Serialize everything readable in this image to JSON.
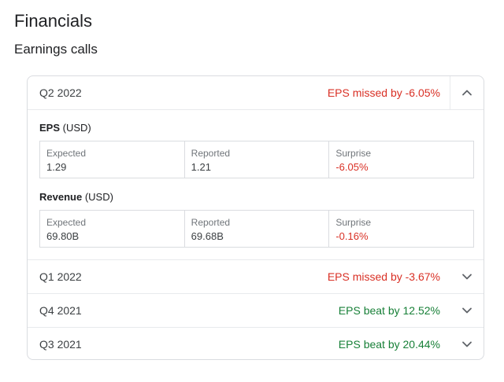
{
  "page": {
    "title": "Financials",
    "section_title": "Earnings calls"
  },
  "colors": {
    "missed": "#d93025",
    "beat": "#188038",
    "border": "#dadce0"
  },
  "earnings": [
    {
      "quarter": "Q2 2022",
      "status": "EPS missed by -6.05%",
      "result": "missed",
      "expanded": true,
      "icon": "chevron-up-icon",
      "eps": {
        "label": "EPS",
        "unit": "(USD)",
        "expected_label": "Expected",
        "expected": "1.29",
        "reported_label": "Reported",
        "reported": "1.21",
        "surprise_label": "Surprise",
        "surprise": "-6.05%"
      },
      "revenue": {
        "label": "Revenue",
        "unit": "(USD)",
        "expected_label": "Expected",
        "expected": "69.80B",
        "reported_label": "Reported",
        "reported": "69.68B",
        "surprise_label": "Surprise",
        "surprise": "-0.16%"
      }
    },
    {
      "quarter": "Q1 2022",
      "status": "EPS missed by -3.67%",
      "result": "missed",
      "expanded": false,
      "icon": "chevron-down-icon"
    },
    {
      "quarter": "Q4 2021",
      "status": "EPS beat by 12.52%",
      "result": "beat",
      "expanded": false,
      "icon": "chevron-down-icon"
    },
    {
      "quarter": "Q3 2021",
      "status": "EPS beat by 20.44%",
      "result": "beat",
      "expanded": false,
      "icon": "chevron-down-icon"
    }
  ]
}
